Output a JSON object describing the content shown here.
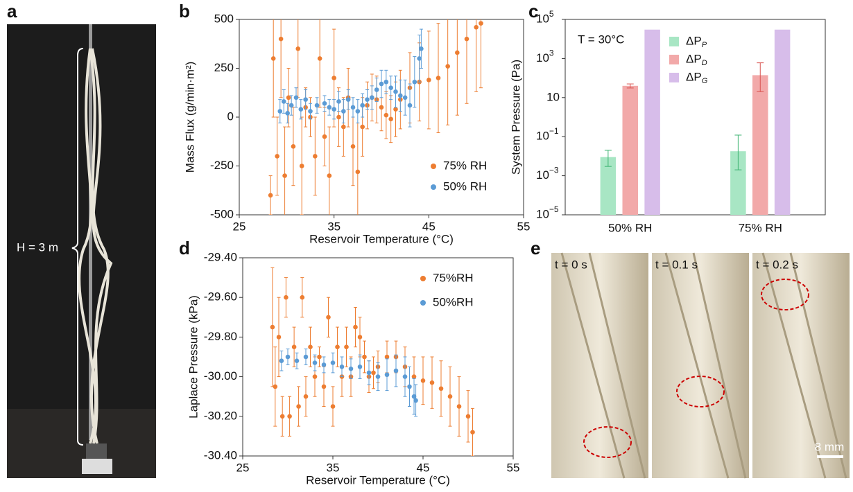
{
  "panel_labels": [
    "a",
    "b",
    "c",
    "d",
    "e"
  ],
  "photo_a": {
    "height_label": "H = 3 m"
  },
  "photo_e": {
    "frames": [
      "t = 0 s",
      "t = 0.1 s",
      "t = 0.2 s"
    ],
    "scale_bar": "8 mm"
  },
  "chart_data": [
    {
      "type": "errorbar",
      "xlabel": "Reservoir Temperature (°C)",
      "ylabel": "Mass Flux (g/min·m²)",
      "xlim": [
        25,
        55
      ],
      "xticks": [
        25,
        35,
        45,
        55
      ],
      "ylim": [
        -500,
        500
      ],
      "yticks": [
        -500,
        -250,
        0,
        250,
        500
      ],
      "legend": "lower right",
      "series": [
        {
          "name": "75% RH",
          "color": "#ed7d31",
          "x": [
            28.3,
            28.6,
            29.0,
            29.4,
            29.8,
            30.2,
            30.7,
            31.2,
            31.6,
            32.0,
            32.5,
            33.0,
            33.5,
            34.0,
            34.5,
            35.0,
            35.5,
            36.0,
            36.5,
            37.0,
            37.5,
            38.0,
            38.5,
            39.0,
            39.5,
            40.0,
            40.5,
            41.0,
            41.5,
            42.0,
            43.0,
            44.0,
            45.0,
            46.0,
            47.0,
            48.0,
            49.0,
            50.0,
            50.5
          ],
          "values": [
            -400,
            300,
            -200,
            400,
            -300,
            100,
            -150,
            350,
            -250,
            50,
            0,
            -200,
            300,
            -100,
            -300,
            200,
            0,
            -50,
            100,
            -150,
            -280,
            -50,
            60,
            100,
            90,
            50,
            10,
            -10,
            40,
            90,
            150,
            180,
            190,
            200,
            260,
            330,
            400,
            460,
            480
          ],
          "errors": [
            100,
            300,
            200,
            300,
            250,
            150,
            200,
            250,
            250,
            100,
            100,
            200,
            250,
            150,
            250,
            250,
            150,
            150,
            150,
            200,
            250,
            150,
            120,
            120,
            120,
            120,
            120,
            120,
            140,
            150,
            180,
            200,
            250,
            280,
            300,
            320,
            330,
            330,
            330
          ]
        },
        {
          "name": "50% RH",
          "color": "#5b9bd5",
          "x": [
            29.3,
            29.7,
            30.1,
            30.5,
            31.0,
            31.5,
            32.0,
            32.5,
            33.2,
            34.0,
            34.5,
            35.0,
            35.5,
            36.0,
            36.5,
            37.0,
            37.5,
            38.0,
            38.5,
            39.0,
            39.5,
            40.0,
            40.5,
            41.0,
            41.5,
            42.0,
            42.5,
            43.0,
            43.5,
            44.0,
            44.2
          ],
          "values": [
            30,
            80,
            20,
            60,
            100,
            40,
            90,
            30,
            60,
            70,
            50,
            40,
            80,
            30,
            90,
            50,
            30,
            60,
            90,
            100,
            140,
            170,
            180,
            150,
            130,
            110,
            100,
            60,
            180,
            300,
            350
          ],
          "errors": [
            60,
            60,
            50,
            50,
            50,
            50,
            50,
            40,
            40,
            40,
            40,
            50,
            50,
            60,
            50,
            50,
            60,
            60,
            50,
            60,
            60,
            70,
            60,
            60,
            80,
            80,
            90,
            110,
            130,
            120,
            100
          ]
        }
      ]
    },
    {
      "type": "bar",
      "ylabel": "System Pressure (Pa)",
      "annotation": "T = 30°C",
      "yscale": "log",
      "legend": "upper center",
      "categories": [
        "50% RH",
        "75% RH"
      ],
      "ylim": [
        1e-05,
        100000
      ],
      "yticks": [
        {
          "value": 1e-05,
          "label": "10",
          "exponent": "−5"
        },
        {
          "value": 0.001,
          "label": "10",
          "exponent": "−3"
        },
        {
          "value": 0.1,
          "label": "10",
          "exponent": "−1"
        },
        10,
        {
          "value": 1000,
          "label": "10",
          "exponent": "3"
        },
        {
          "value": 100000,
          "label": "10",
          "exponent": "5"
        }
      ],
      "series": [
        {
          "name": "ΔP",
          "subscript": "P",
          "color": "#a8e6c4",
          "error_color": "#3cb371",
          "values": [
            0.009,
            0.018
          ],
          "errors_minus": [
            0.006,
            0.016
          ],
          "errors_plus": [
            0.011,
            0.102
          ]
        },
        {
          "name": "ΔP",
          "subscript": "D",
          "color": "#f2a9a9",
          "error_color": "#d9534f",
          "values": [
            40,
            140
          ],
          "errors_minus": [
            9,
            120
          ],
          "errors_plus": [
            10,
            460
          ]
        },
        {
          "name": "ΔP",
          "subscript": "G",
          "color": "#d7bdea",
          "error_color": "#9b6bc4",
          "values": [
            30000,
            30000
          ],
          "errors_minus": [
            null,
            null
          ],
          "errors_plus": [
            null,
            null
          ]
        }
      ]
    },
    {
      "type": "errorbar",
      "xlabel": "Reservoir Temperature (°C)",
      "ylabel": "Laplace Pressure (kPa)",
      "xlim": [
        25,
        55
      ],
      "xticks": [
        25,
        35,
        45,
        55
      ],
      "ylim": [
        -30.4,
        -29.4
      ],
      "legend": "upper right",
      "yticks": [
        {
          "value": -30.4,
          "label": "-30.40"
        },
        {
          "value": -30.2,
          "label": "-30.20"
        },
        {
          "value": -30.0,
          "label": "-30.00"
        },
        {
          "value": -29.8,
          "label": "-29.80"
        },
        {
          "value": -29.6,
          "label": "-29.60"
        },
        {
          "value": -29.4,
          "label": "-29.40"
        }
      ],
      "series": [
        {
          "name": "75%RH",
          "color": "#ed7d31",
          "x": [
            28.3,
            28.6,
            29.0,
            29.4,
            29.8,
            30.2,
            30.7,
            31.2,
            31.6,
            32.0,
            32.5,
            33.0,
            33.5,
            34.0,
            34.5,
            35.0,
            35.5,
            36.0,
            36.5,
            37.0,
            37.5,
            38.0,
            38.5,
            39.0,
            39.5,
            40.0,
            41.0,
            42.0,
            43.0,
            44.0,
            45.0,
            46.0,
            47.0,
            48.0,
            49.0,
            50.0,
            50.5
          ],
          "values": [
            -29.75,
            -30.05,
            -29.8,
            -30.2,
            -29.6,
            -30.2,
            -29.85,
            -30.15,
            -29.6,
            -30.1,
            -29.85,
            -30.0,
            -29.9,
            -30.05,
            -29.7,
            -30.15,
            -29.85,
            -30.0,
            -29.85,
            -30.0,
            -29.75,
            -29.8,
            -29.9,
            -30.0,
            -29.98,
            -29.95,
            -29.9,
            -29.9,
            -29.95,
            -30.0,
            -30.02,
            -30.03,
            -30.06,
            -30.1,
            -30.15,
            -30.2,
            -30.28
          ],
          "errors": [
            0.3,
            0.2,
            0.2,
            0.1,
            0.1,
            0.1,
            0.1,
            0.1,
            0.1,
            0.1,
            0.1,
            0.1,
            0.05,
            0.1,
            0.1,
            0.1,
            0.1,
            0.1,
            0.1,
            0.1,
            0.1,
            0.1,
            0.08,
            0.08,
            0.08,
            0.08,
            0.08,
            0.08,
            0.1,
            0.1,
            0.12,
            0.13,
            0.14,
            0.15,
            0.15,
            0.13,
            0.12
          ]
        },
        {
          "name": "50%RH",
          "color": "#5b9bd5",
          "x": [
            29.3,
            30.0,
            31.0,
            32.0,
            33.0,
            34.0,
            35.0,
            36.0,
            37.0,
            38.0,
            39.0,
            40.0,
            41.0,
            42.0,
            43.0,
            43.5,
            44.0,
            44.2
          ],
          "values": [
            -29.92,
            -29.9,
            -29.92,
            -29.9,
            -29.93,
            -29.94,
            -29.93,
            -29.95,
            -29.96,
            -29.95,
            -29.98,
            -30.0,
            -29.99,
            -29.97,
            -30.0,
            -30.05,
            -30.1,
            -30.12
          ],
          "errors": [
            0.05,
            0.04,
            0.04,
            0.04,
            0.04,
            0.04,
            0.05,
            0.05,
            0.05,
            0.06,
            0.06,
            0.07,
            0.08,
            0.08,
            0.1,
            0.1,
            0.09,
            0.08
          ]
        }
      ]
    }
  ]
}
